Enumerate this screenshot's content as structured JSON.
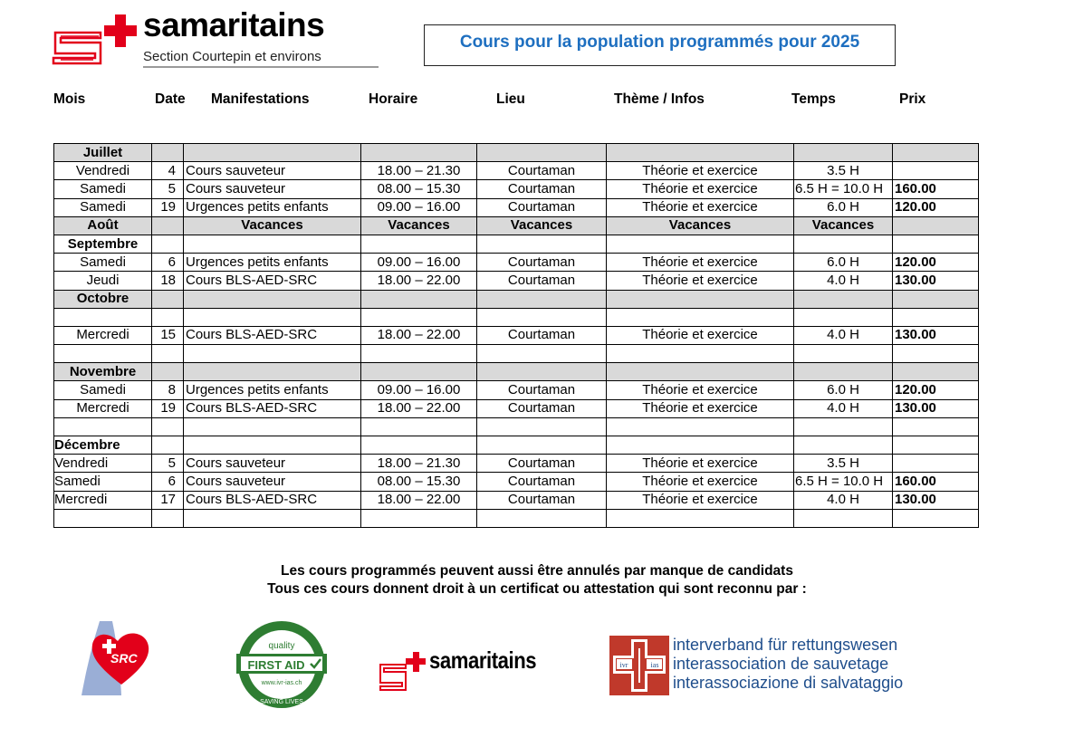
{
  "header": {
    "logo_wordmark": "samaritains",
    "logo_subtitle": "Section Courtepin et environs",
    "title": "Cours pour la population programmés pour 2025"
  },
  "columns": [
    "Mois",
    "Date",
    "Manifestations",
    "Horaire",
    "Lieu",
    "Thème / Infos",
    "Temps",
    "Prix"
  ],
  "rows": [
    {
      "type": "month",
      "mois": "Juillet",
      "date": "",
      "manif": "",
      "horaire": "",
      "lieu": "",
      "theme": "",
      "temps": "",
      "prix": ""
    },
    {
      "type": "course",
      "mois": "Vendredi",
      "date": "4",
      "manif": "Cours sauveteur",
      "horaire": "18.00 – 21.30",
      "lieu": "Courtaman",
      "theme": "Théorie et exercice",
      "temps": "3.5 H",
      "prix": ""
    },
    {
      "type": "course",
      "mois": "Samedi",
      "date": "5",
      "manif": "Cours sauveteur",
      "horaire": "08.00 – 15.30",
      "lieu": "Courtaman",
      "theme": "Théorie et exercice",
      "temps": "6.5 H = 10.0 H",
      "prix": "160.00"
    },
    {
      "type": "course",
      "mois": "Samedi",
      "date": "19",
      "manif": "Urgences petits enfants",
      "horaire": "09.00 – 16.00",
      "lieu": "Courtaman",
      "theme": "Théorie et exercice",
      "temps": "6.0 H",
      "prix": "120.00"
    },
    {
      "type": "vacation",
      "mois": "Août",
      "date": "",
      "manif": "Vacances",
      "horaire": "Vacances",
      "lieu": "Vacances",
      "theme": "Vacances",
      "temps": "Vacances",
      "prix": ""
    },
    {
      "type": "plain-month",
      "mois": "Septembre",
      "date": "",
      "manif": "",
      "horaire": "",
      "lieu": "",
      "theme": "",
      "temps": "",
      "prix": ""
    },
    {
      "type": "course",
      "mois": "Samedi",
      "date": "6",
      "manif": "Urgences petits enfants",
      "horaire": "09.00 – 16.00",
      "lieu": "Courtaman",
      "theme": "Théorie et exercice",
      "temps": "6.0 H",
      "prix": "120.00"
    },
    {
      "type": "course",
      "mois": "Jeudi",
      "date": "18",
      "manif": "Cours BLS-AED-SRC",
      "horaire": "18.00 – 22.00",
      "lieu": "Courtaman",
      "theme": "Théorie et exercice",
      "temps": "4.0 H",
      "prix": "130.00"
    },
    {
      "type": "month",
      "mois": "Octobre",
      "date": "",
      "manif": "",
      "horaire": "",
      "lieu": "",
      "theme": "",
      "temps": "",
      "prix": ""
    },
    {
      "type": "empty",
      "mois": "",
      "date": "",
      "manif": "",
      "horaire": "",
      "lieu": "",
      "theme": "",
      "temps": "",
      "prix": ""
    },
    {
      "type": "course",
      "mois": "Mercredi",
      "date": "15",
      "manif": "Cours BLS-AED-SRC",
      "horaire": "18.00 – 22.00",
      "lieu": "Courtaman",
      "theme": "Théorie et exercice",
      "temps": "4.0 H",
      "prix": "130.00"
    },
    {
      "type": "empty",
      "mois": "",
      "date": "",
      "manif": "",
      "horaire": "",
      "lieu": "",
      "theme": "",
      "temps": "",
      "prix": ""
    },
    {
      "type": "month",
      "mois": "Novembre",
      "date": "",
      "manif": "",
      "horaire": "",
      "lieu": "",
      "theme": "",
      "temps": "",
      "prix": ""
    },
    {
      "type": "course",
      "mois": "Samedi",
      "date": "8",
      "manif": "Urgences petits enfants",
      "horaire": "09.00 – 16.00",
      "lieu": "Courtaman",
      "theme": "Théorie et exercice",
      "temps": "6.0 H",
      "prix": "120.00"
    },
    {
      "type": "course",
      "mois": "Mercredi",
      "date": "19",
      "manif": "Cours BLS-AED-SRC",
      "horaire": "18.00 – 22.00",
      "lieu": "Courtaman",
      "theme": "Théorie et exercice",
      "temps": "4.0 H",
      "prix": "130.00"
    },
    {
      "type": "empty",
      "mois": "",
      "date": "",
      "manif": "",
      "horaire": "",
      "lieu": "",
      "theme": "",
      "temps": "",
      "prix": ""
    },
    {
      "type": "plain-month-left",
      "mois": "Décembre",
      "date": "",
      "manif": "",
      "horaire": "",
      "lieu": "",
      "theme": "",
      "temps": "",
      "prix": ""
    },
    {
      "type": "course-left",
      "mois": "Vendredi",
      "date": "5",
      "manif": "Cours sauveteur",
      "horaire": "18.00 – 21.30",
      "lieu": "Courtaman",
      "theme": "Théorie et exercice",
      "temps": "3.5 H",
      "prix": ""
    },
    {
      "type": "course-left",
      "mois": "Samedi",
      "date": "6",
      "manif": "Cours sauveteur",
      "horaire": "08.00 – 15.30",
      "lieu": "Courtaman",
      "theme": "Théorie et exercice",
      "temps": "6.5 H = 10.0 H",
      "prix": "160.00"
    },
    {
      "type": "course-left",
      "mois": "Mercredi",
      "date": "17",
      "manif": "Cours BLS-AED-SRC",
      "horaire": "18.00 – 22.00",
      "lieu": "Courtaman",
      "theme": "Théorie et exercice",
      "temps": "4.0 H",
      "prix": "130.00"
    },
    {
      "type": "empty",
      "mois": "",
      "date": "",
      "manif": "",
      "horaire": "",
      "lieu": "",
      "theme": "",
      "temps": "",
      "prix": ""
    }
  ],
  "notes": {
    "line1": "Les cours programmés peuvent aussi être annulés par manque de candidats",
    "line2": "Tous ces cours donnent droit à un certificat ou attestation qui sont reconnu par :"
  },
  "footer_logos": {
    "src": {
      "label": "SRC"
    },
    "first_aid": {
      "top": "quality",
      "main": "FIRST AID",
      "url": "www.ivr-ias.ch",
      "bottom": "SAVING LIVES"
    },
    "samaritains": {
      "wordmark": "samaritains"
    },
    "ivr": {
      "badge_left": "ivr",
      "badge_right": "ias",
      "lines": [
        "interverband für rettungswesen",
        "interassociation de sauvetage",
        "interassociazione di salvataggio"
      ]
    }
  },
  "colors": {
    "title_blue": "#1e6fc0",
    "brand_red": "#e2001a",
    "month_row_gray": "#d9d9d9",
    "firstaid_green": "#2e7d32",
    "ivr_red": "#c0392b",
    "ivr_blue": "#1f4e8c"
  }
}
